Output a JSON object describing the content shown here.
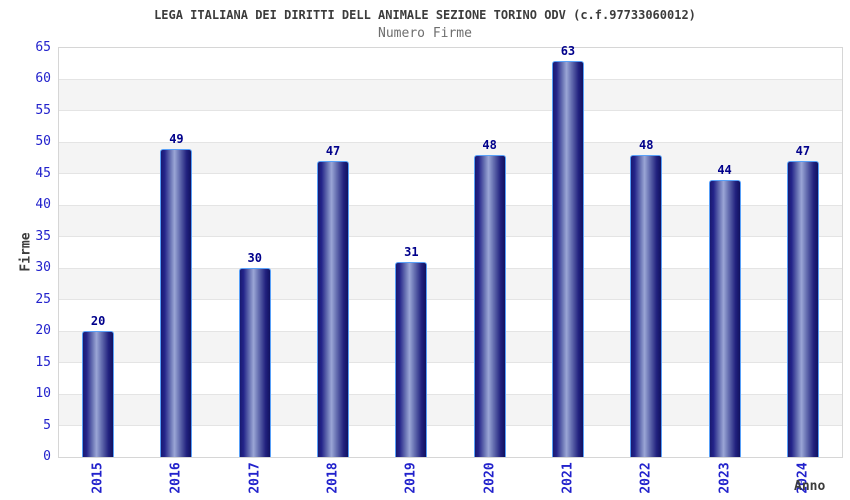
{
  "header": {
    "title": "LEGA ITALIANA DEI DIRITTI DELL ANIMALE SEZIONE TORINO ODV (c.f.97733060012)",
    "subtitle": "Numero Firme"
  },
  "chart_data": {
    "type": "bar",
    "title": "LEGA ITALIANA DEI DIRITTI DELL ANIMALE SEZIONE TORINO ODV (c.f.97733060012)",
    "subtitle": "Numero Firme",
    "categories": [
      "2015",
      "2016",
      "2017",
      "2018",
      "2019",
      "2020",
      "2021",
      "2022",
      "2023",
      "2024"
    ],
    "values": [
      20,
      49,
      30,
      47,
      31,
      48,
      63,
      48,
      44,
      47
    ],
    "xlabel": "Anno",
    "ylabel": "Firme",
    "ylim": [
      0,
      65
    ],
    "ytick_step": 5,
    "grid": true,
    "legend_position": "none",
    "banded_background": true,
    "colors": {
      "bar_dark": "#191970",
      "bar_highlight": "#9ba6d6",
      "bar_border": "#58a0f8",
      "axis_tick_label": "#2222cc",
      "value_label": "#00008b",
      "title": "#3c3c3c",
      "subtitle": "#6e6e6e",
      "band_gray": "#f4f4f4",
      "gridline": "#e4e4e4",
      "plot_border": "#d6d6d6"
    }
  }
}
